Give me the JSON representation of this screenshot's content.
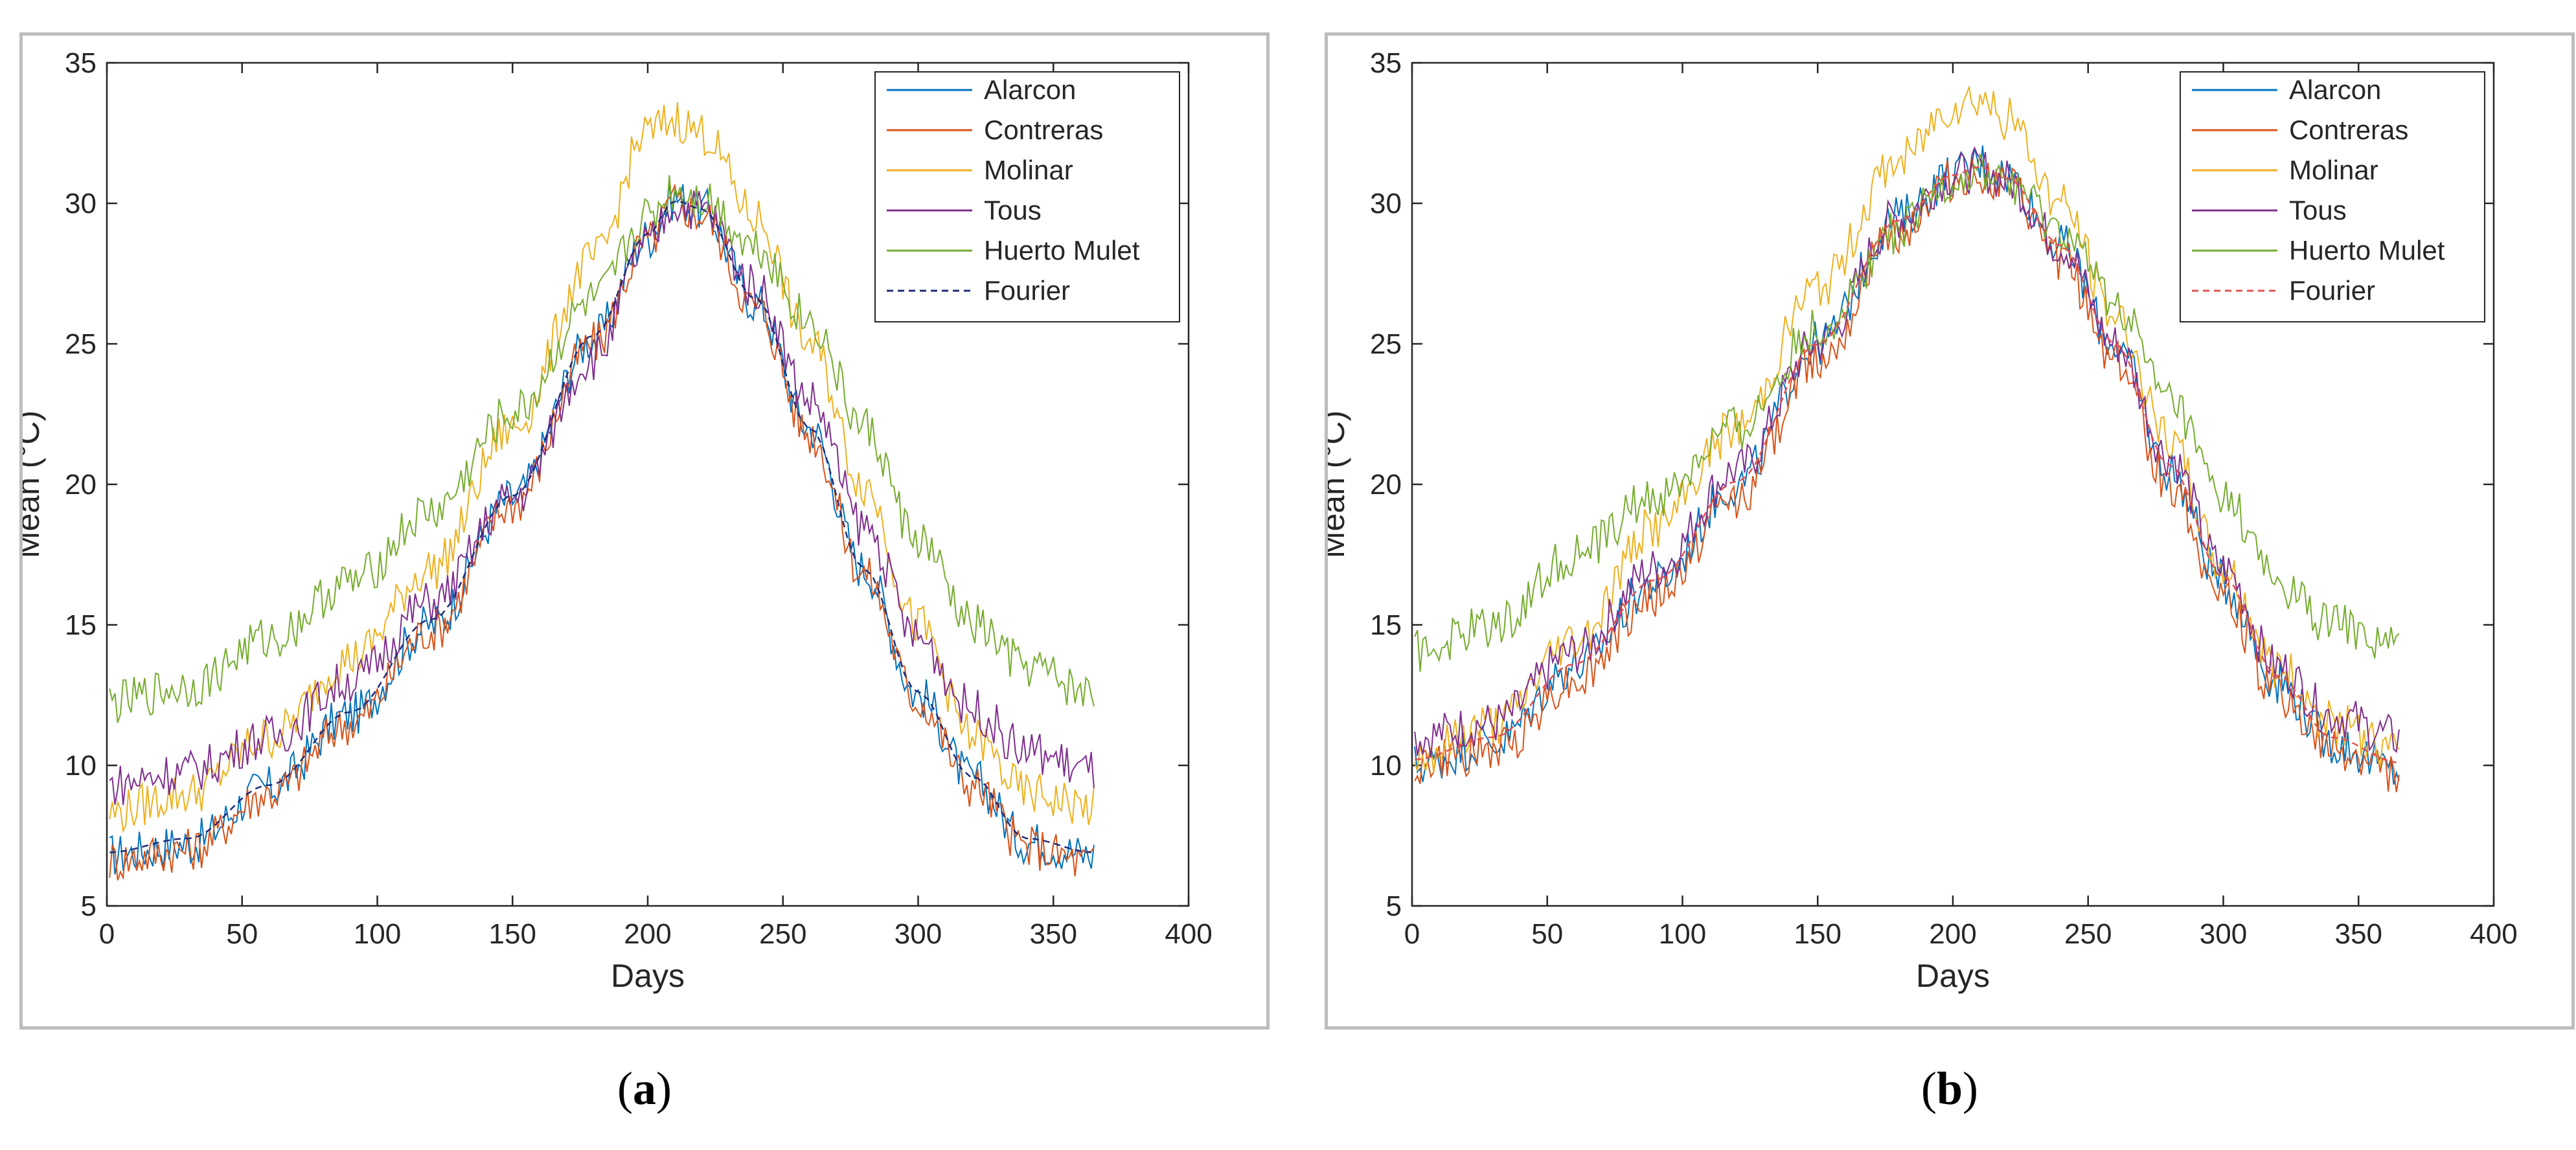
{
  "chart_data": [
    {
      "type": "line",
      "panel": "a",
      "xlabel": "Days",
      "ylabel": "Mean (°C)",
      "xlim": [
        0,
        400
      ],
      "ylim": [
        5,
        35
      ],
      "xticks": [
        0,
        50,
        100,
        150,
        200,
        250,
        300,
        350,
        400
      ],
      "yticks": [
        5,
        10,
        15,
        20,
        25,
        30,
        35
      ],
      "legend_position": "top-right",
      "series": [
        {
          "name": "Alarcon",
          "color": "#0072BD",
          "style": "solid",
          "x": [
            0,
            30,
            60,
            90,
            120,
            150,
            180,
            200,
            210,
            220,
            240,
            260,
            280,
            300,
            320,
            340,
            365
          ],
          "y": [
            6.8,
            7.2,
            9.2,
            11.8,
            15.0,
            19.5,
            25.2,
            28.8,
            30.2,
            29.8,
            26.5,
            22.0,
            17.0,
            12.5,
            9.5,
            7.3,
            6.8
          ]
        },
        {
          "name": "Contreras",
          "color": "#D95319",
          "style": "solid",
          "x": [
            0,
            30,
            60,
            90,
            120,
            150,
            180,
            200,
            210,
            220,
            240,
            260,
            280,
            300,
            320,
            340,
            365
          ],
          "y": [
            6.6,
            7.0,
            9.0,
            11.5,
            14.8,
            19.3,
            25.0,
            28.6,
            30.0,
            29.6,
            26.3,
            21.8,
            16.8,
            12.3,
            9.3,
            7.1,
            6.5
          ]
        },
        {
          "name": "Molinar",
          "color": "#EDB120",
          "style": "solid",
          "x": [
            0,
            30,
            60,
            90,
            120,
            150,
            180,
            200,
            210,
            220,
            240,
            260,
            280,
            300,
            320,
            340,
            365
          ],
          "y": [
            8.3,
            9.0,
            11.0,
            13.8,
            17.0,
            22.0,
            28.0,
            32.5,
            33.0,
            32.5,
            29.5,
            25.0,
            20.0,
            15.0,
            11.0,
            9.0,
            8.5
          ]
        },
        {
          "name": "Tous",
          "color": "#7E2F8E",
          "style": "solid",
          "x": [
            0,
            30,
            60,
            90,
            120,
            150,
            180,
            200,
            210,
            220,
            240,
            260,
            280,
            300,
            320,
            340,
            365
          ],
          "y": [
            9.3,
            9.8,
            11.0,
            13.0,
            15.8,
            19.5,
            24.5,
            28.5,
            30.0,
            29.8,
            27.0,
            23.0,
            18.5,
            14.5,
            12.0,
            10.5,
            9.8
          ]
        },
        {
          "name": "Huerto Mulet",
          "color": "#77AC30",
          "style": "solid",
          "x": [
            0,
            30,
            60,
            90,
            120,
            150,
            180,
            200,
            210,
            220,
            240,
            260,
            280,
            300,
            320,
            340,
            365
          ],
          "y": [
            12.2,
            12.8,
            14.5,
            16.5,
            19.0,
            22.5,
            26.5,
            29.5,
            30.5,
            30.2,
            28.5,
            25.8,
            22.0,
            18.0,
            15.0,
            13.5,
            12.5
          ]
        },
        {
          "name": "Fourier",
          "color": "#1F2D7A",
          "style": "dashed",
          "x": [
            0,
            30,
            60,
            90,
            120,
            150,
            180,
            200,
            210,
            220,
            240,
            260,
            280,
            300,
            320,
            340,
            365
          ],
          "y": [
            6.9,
            7.4,
            9.3,
            11.9,
            15.2,
            19.6,
            25.3,
            28.9,
            30.1,
            29.8,
            26.6,
            22.0,
            17.0,
            12.6,
            9.6,
            7.4,
            6.9
          ]
        }
      ]
    },
    {
      "type": "line",
      "panel": "b",
      "xlabel": "Days",
      "ylabel": "Mean (°C)",
      "xlim": [
        0,
        400
      ],
      "ylim": [
        5,
        35
      ],
      "xticks": [
        0,
        50,
        100,
        150,
        200,
        250,
        300,
        350,
        400
      ],
      "yticks": [
        5,
        10,
        15,
        20,
        25,
        30,
        35
      ],
      "legend_position": "top-right",
      "series": [
        {
          "name": "Alarcon",
          "color": "#0072BD",
          "style": "solid",
          "x": [
            0,
            30,
            60,
            90,
            120,
            150,
            180,
            200,
            210,
            220,
            240,
            260,
            280,
            300,
            320,
            340,
            365
          ],
          "y": [
            10.0,
            10.8,
            13.5,
            16.5,
            20.0,
            25.0,
            29.5,
            31.0,
            31.5,
            31.0,
            28.5,
            25.0,
            20.5,
            16.5,
            13.0,
            10.8,
            9.8
          ]
        },
        {
          "name": "Contreras",
          "color": "#D95319",
          "style": "solid",
          "x": [
            0,
            30,
            60,
            90,
            120,
            150,
            180,
            200,
            210,
            220,
            240,
            260,
            280,
            300,
            320,
            340,
            365
          ],
          "y": [
            10.0,
            10.5,
            13.0,
            16.0,
            19.5,
            24.5,
            29.0,
            30.8,
            31.0,
            30.5,
            28.0,
            24.5,
            20.0,
            16.0,
            12.5,
            10.5,
            9.8
          ]
        },
        {
          "name": "Molinar",
          "color": "#EDB120",
          "style": "solid",
          "x": [
            0,
            30,
            60,
            90,
            120,
            150,
            180,
            200,
            210,
            220,
            240,
            260,
            280,
            300,
            320,
            340,
            365
          ],
          "y": [
            10.3,
            11.5,
            14.5,
            18.5,
            22.0,
            27.0,
            31.5,
            33.5,
            33.8,
            33.0,
            30.0,
            26.0,
            21.5,
            17.0,
            13.5,
            11.5,
            10.5
          ]
        },
        {
          "name": "Tous",
          "color": "#7E2F8E",
          "style": "solid",
          "x": [
            0,
            30,
            60,
            90,
            120,
            150,
            180,
            200,
            210,
            220,
            240,
            260,
            280,
            300,
            320,
            340,
            365
          ],
          "y": [
            11.0,
            11.5,
            14.0,
            17.0,
            20.5,
            25.0,
            29.5,
            31.0,
            31.2,
            30.8,
            28.5,
            25.0,
            21.0,
            17.0,
            13.5,
            11.8,
            11.0
          ]
        },
        {
          "name": "Huerto Mulet",
          "color": "#77AC30",
          "style": "solid",
          "x": [
            0,
            30,
            60,
            90,
            120,
            150,
            180,
            200,
            210,
            220,
            240,
            260,
            280,
            300,
            320,
            340,
            365
          ],
          "y": [
            14.0,
            15.0,
            17.5,
            19.5,
            22.0,
            25.5,
            29.0,
            30.8,
            31.0,
            30.8,
            29.0,
            26.5,
            23.0,
            19.5,
            16.5,
            15.0,
            14.2
          ]
        },
        {
          "name": "Fourier",
          "color": "#E35050",
          "style": "dashed",
          "x": [
            0,
            30,
            60,
            90,
            120,
            150,
            180,
            200,
            210,
            220,
            240,
            260,
            280,
            300,
            320,
            340,
            365
          ],
          "y": [
            10.2,
            11.0,
            13.6,
            16.6,
            20.1,
            25.0,
            29.4,
            31.0,
            31.3,
            30.9,
            28.5,
            25.0,
            20.7,
            16.7,
            13.2,
            11.0,
            10.1
          ]
        }
      ]
    }
  ],
  "captions": [
    "(a)",
    "(b)"
  ],
  "caption_letters": [
    "a",
    "b"
  ]
}
